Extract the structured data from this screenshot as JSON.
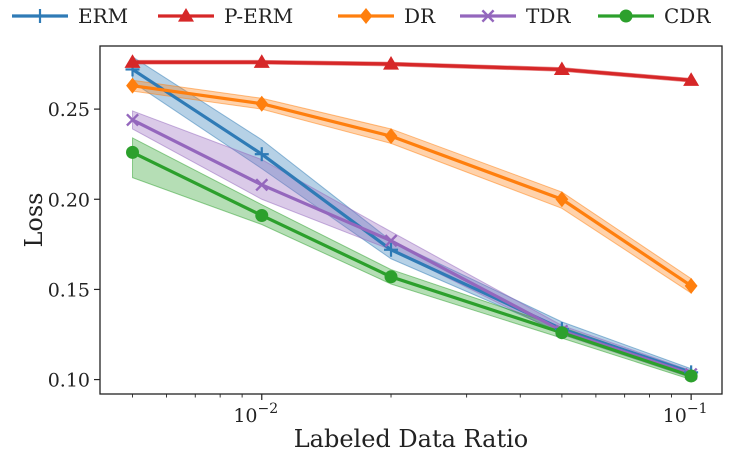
{
  "chart_data": {
    "type": "line",
    "title": "",
    "xlabel": "Labeled Data Ratio",
    "ylabel": "Loss",
    "xscale": "log",
    "xlim": [
      0.0042,
      0.118
    ],
    "ylim": [
      0.092,
      0.285
    ],
    "x": [
      0.005,
      0.01,
      0.02,
      0.05,
      0.1
    ],
    "x_ticks": [
      {
        "value": 0.01,
        "base": "10",
        "exp": "−2"
      },
      {
        "value": 0.1,
        "base": "10",
        "exp": "−1"
      }
    ],
    "y_ticks": [
      {
        "value": 0.1,
        "label": "0.10"
      },
      {
        "value": 0.15,
        "label": "0.15"
      },
      {
        "value": 0.2,
        "label": "0.20"
      },
      {
        "value": 0.25,
        "label": "0.25"
      }
    ],
    "grid": false,
    "legend": "top",
    "series": [
      {
        "name": "ERM",
        "color": "#2f7bb6",
        "marker": "plus",
        "values": [
          0.272,
          0.225,
          0.172,
          0.128,
          0.104
        ],
        "lower": [
          0.265,
          0.217,
          0.167,
          0.126,
          0.102
        ],
        "upper": [
          0.279,
          0.233,
          0.177,
          0.132,
          0.106
        ]
      },
      {
        "name": "P-ERM",
        "color": "#d62728",
        "marker": "triangle",
        "values": [
          0.276,
          0.276,
          0.275,
          0.272,
          0.266
        ],
        "lower": [
          0.275,
          0.275,
          0.274,
          0.271,
          0.265
        ],
        "upper": [
          0.277,
          0.277,
          0.276,
          0.273,
          0.267
        ]
      },
      {
        "name": "DR",
        "color": "#ff7f0e",
        "marker": "diamond",
        "values": [
          0.263,
          0.253,
          0.235,
          0.2,
          0.152
        ],
        "lower": [
          0.26,
          0.25,
          0.231,
          0.195,
          0.148
        ],
        "upper": [
          0.266,
          0.256,
          0.239,
          0.204,
          0.156
        ]
      },
      {
        "name": "TDR",
        "color": "#9467bd",
        "marker": "x",
        "values": [
          0.244,
          0.208,
          0.177,
          0.127,
          0.103
        ],
        "lower": [
          0.239,
          0.2,
          0.172,
          0.125,
          0.101
        ],
        "upper": [
          0.249,
          0.222,
          0.182,
          0.13,
          0.105
        ]
      },
      {
        "name": "CDR",
        "color": "#2ca02c",
        "marker": "circle",
        "values": [
          0.226,
          0.191,
          0.157,
          0.126,
          0.102
        ],
        "lower": [
          0.212,
          0.186,
          0.153,
          0.123,
          0.1
        ],
        "upper": [
          0.234,
          0.197,
          0.161,
          0.129,
          0.104
        ]
      }
    ]
  }
}
